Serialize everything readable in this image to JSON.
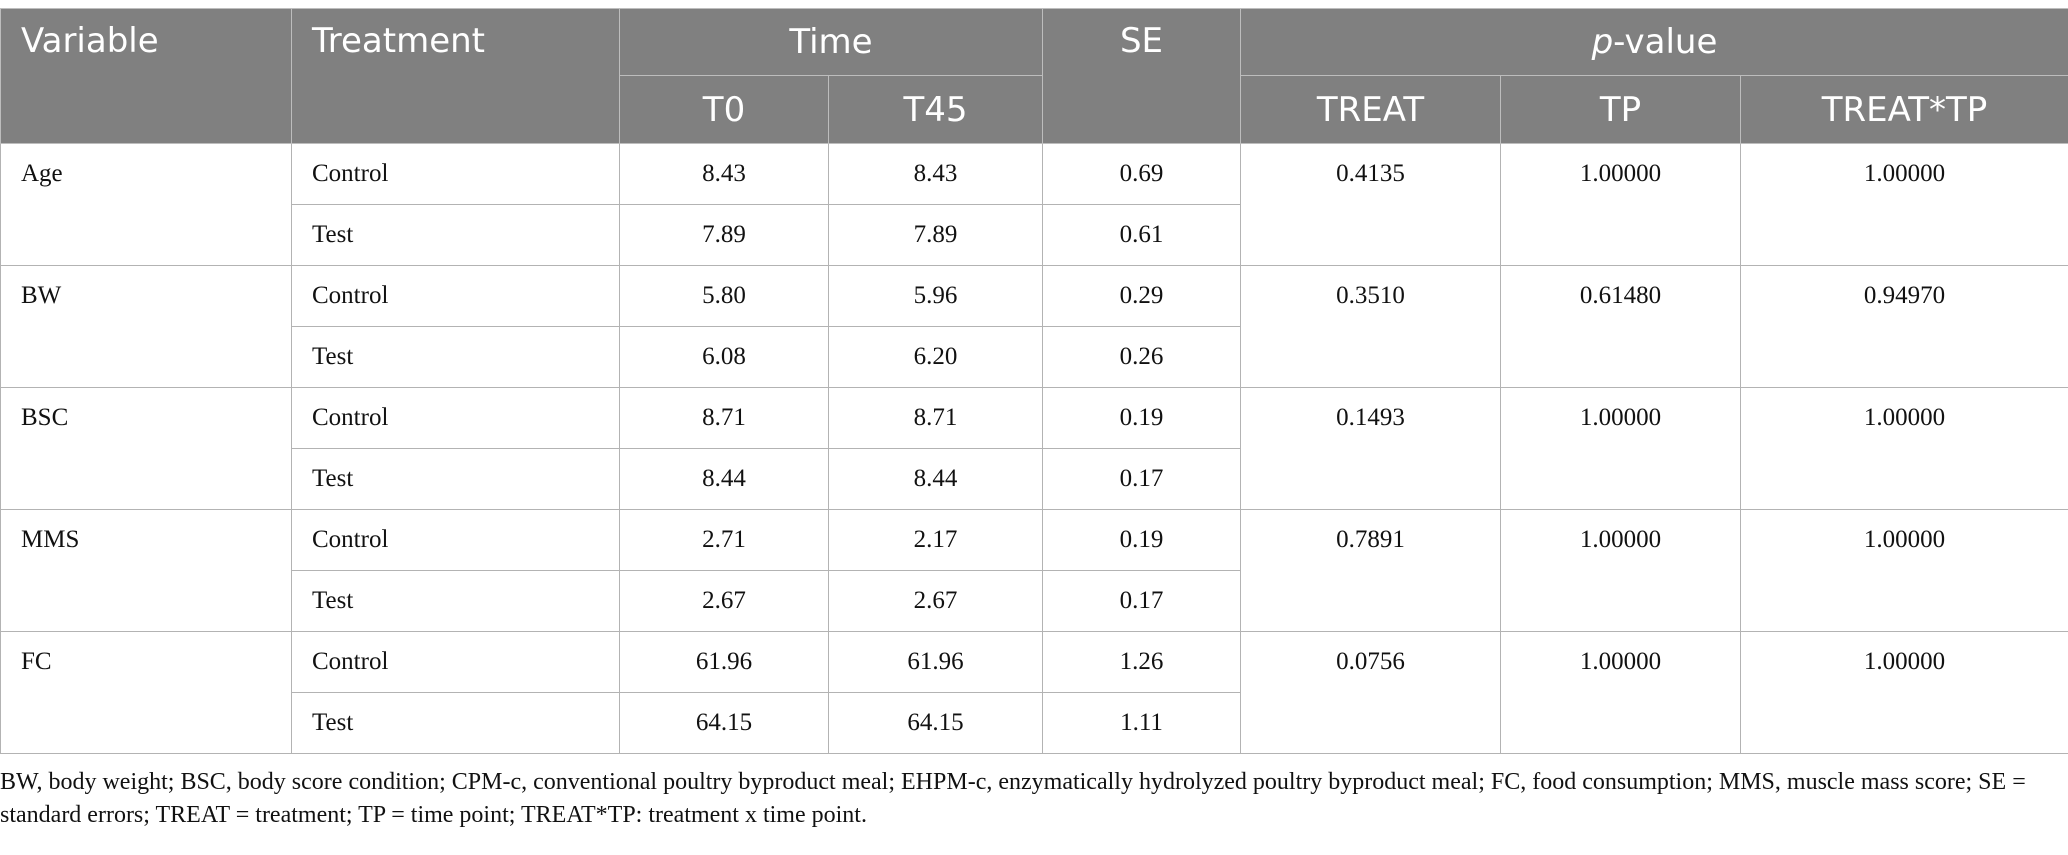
{
  "table": {
    "headers": {
      "variable": "Variable",
      "treatment": "Treatment",
      "time": "Time",
      "t0": "T0",
      "t45": "T45",
      "se": "SE",
      "pvalue_p": "p",
      "pvalue_rest": "-value",
      "treat": "TREAT",
      "tp": "TP",
      "treat_tp": "TREAT*TP"
    },
    "rows": [
      {
        "variable": "Age",
        "treat": "0.4135",
        "tp": "1.00000",
        "treat_tp": "1.00000",
        "groups": [
          {
            "treatment": "Control",
            "t0": "8.43",
            "t45": "8.43",
            "se": "0.69"
          },
          {
            "treatment": "Test",
            "t0": "7.89",
            "t45": "7.89",
            "se": "0.61"
          }
        ]
      },
      {
        "variable": "BW",
        "treat": "0.3510",
        "tp": "0.61480",
        "treat_tp": "0.94970",
        "groups": [
          {
            "treatment": "Control",
            "t0": "5.80",
            "t45": "5.96",
            "se": "0.29"
          },
          {
            "treatment": "Test",
            "t0": "6.08",
            "t45": "6.20",
            "se": "0.26"
          }
        ]
      },
      {
        "variable": "BSC",
        "treat": "0.1493",
        "tp": "1.00000",
        "treat_tp": "1.00000",
        "groups": [
          {
            "treatment": "Control",
            "t0": "8.71",
            "t45": "8.71",
            "se": "0.19"
          },
          {
            "treatment": "Test",
            "t0": "8.44",
            "t45": "8.44",
            "se": "0.17"
          }
        ]
      },
      {
        "variable": "MMS",
        "treat": "0.7891",
        "tp": "1.00000",
        "treat_tp": "1.00000",
        "groups": [
          {
            "treatment": "Control",
            "t0": "2.71",
            "t45": "2.17",
            "se": "0.19"
          },
          {
            "treatment": "Test",
            "t0": "2.67",
            "t45": "2.67",
            "se": "0.17"
          }
        ]
      },
      {
        "variable": "FC",
        "treat": "0.0756",
        "tp": "1.00000",
        "treat_tp": "1.00000",
        "groups": [
          {
            "treatment": "Control",
            "t0": "61.96",
            "t45": "61.96",
            "se": "1.26"
          },
          {
            "treatment": "Test",
            "t0": "64.15",
            "t45": "64.15",
            "se": "1.11"
          }
        ]
      }
    ]
  },
  "footnote": "BW, body weight; BSC, body score condition; CPM-c, conventional poultry byproduct meal; EHPM-c, enzymatically hydrolyzed poultry byproduct meal; FC, food consumption; MMS, muscle mass score; SE = standard errors; TREAT = treatment; TP = time point; TREAT*TP: treatment x time point."
}
